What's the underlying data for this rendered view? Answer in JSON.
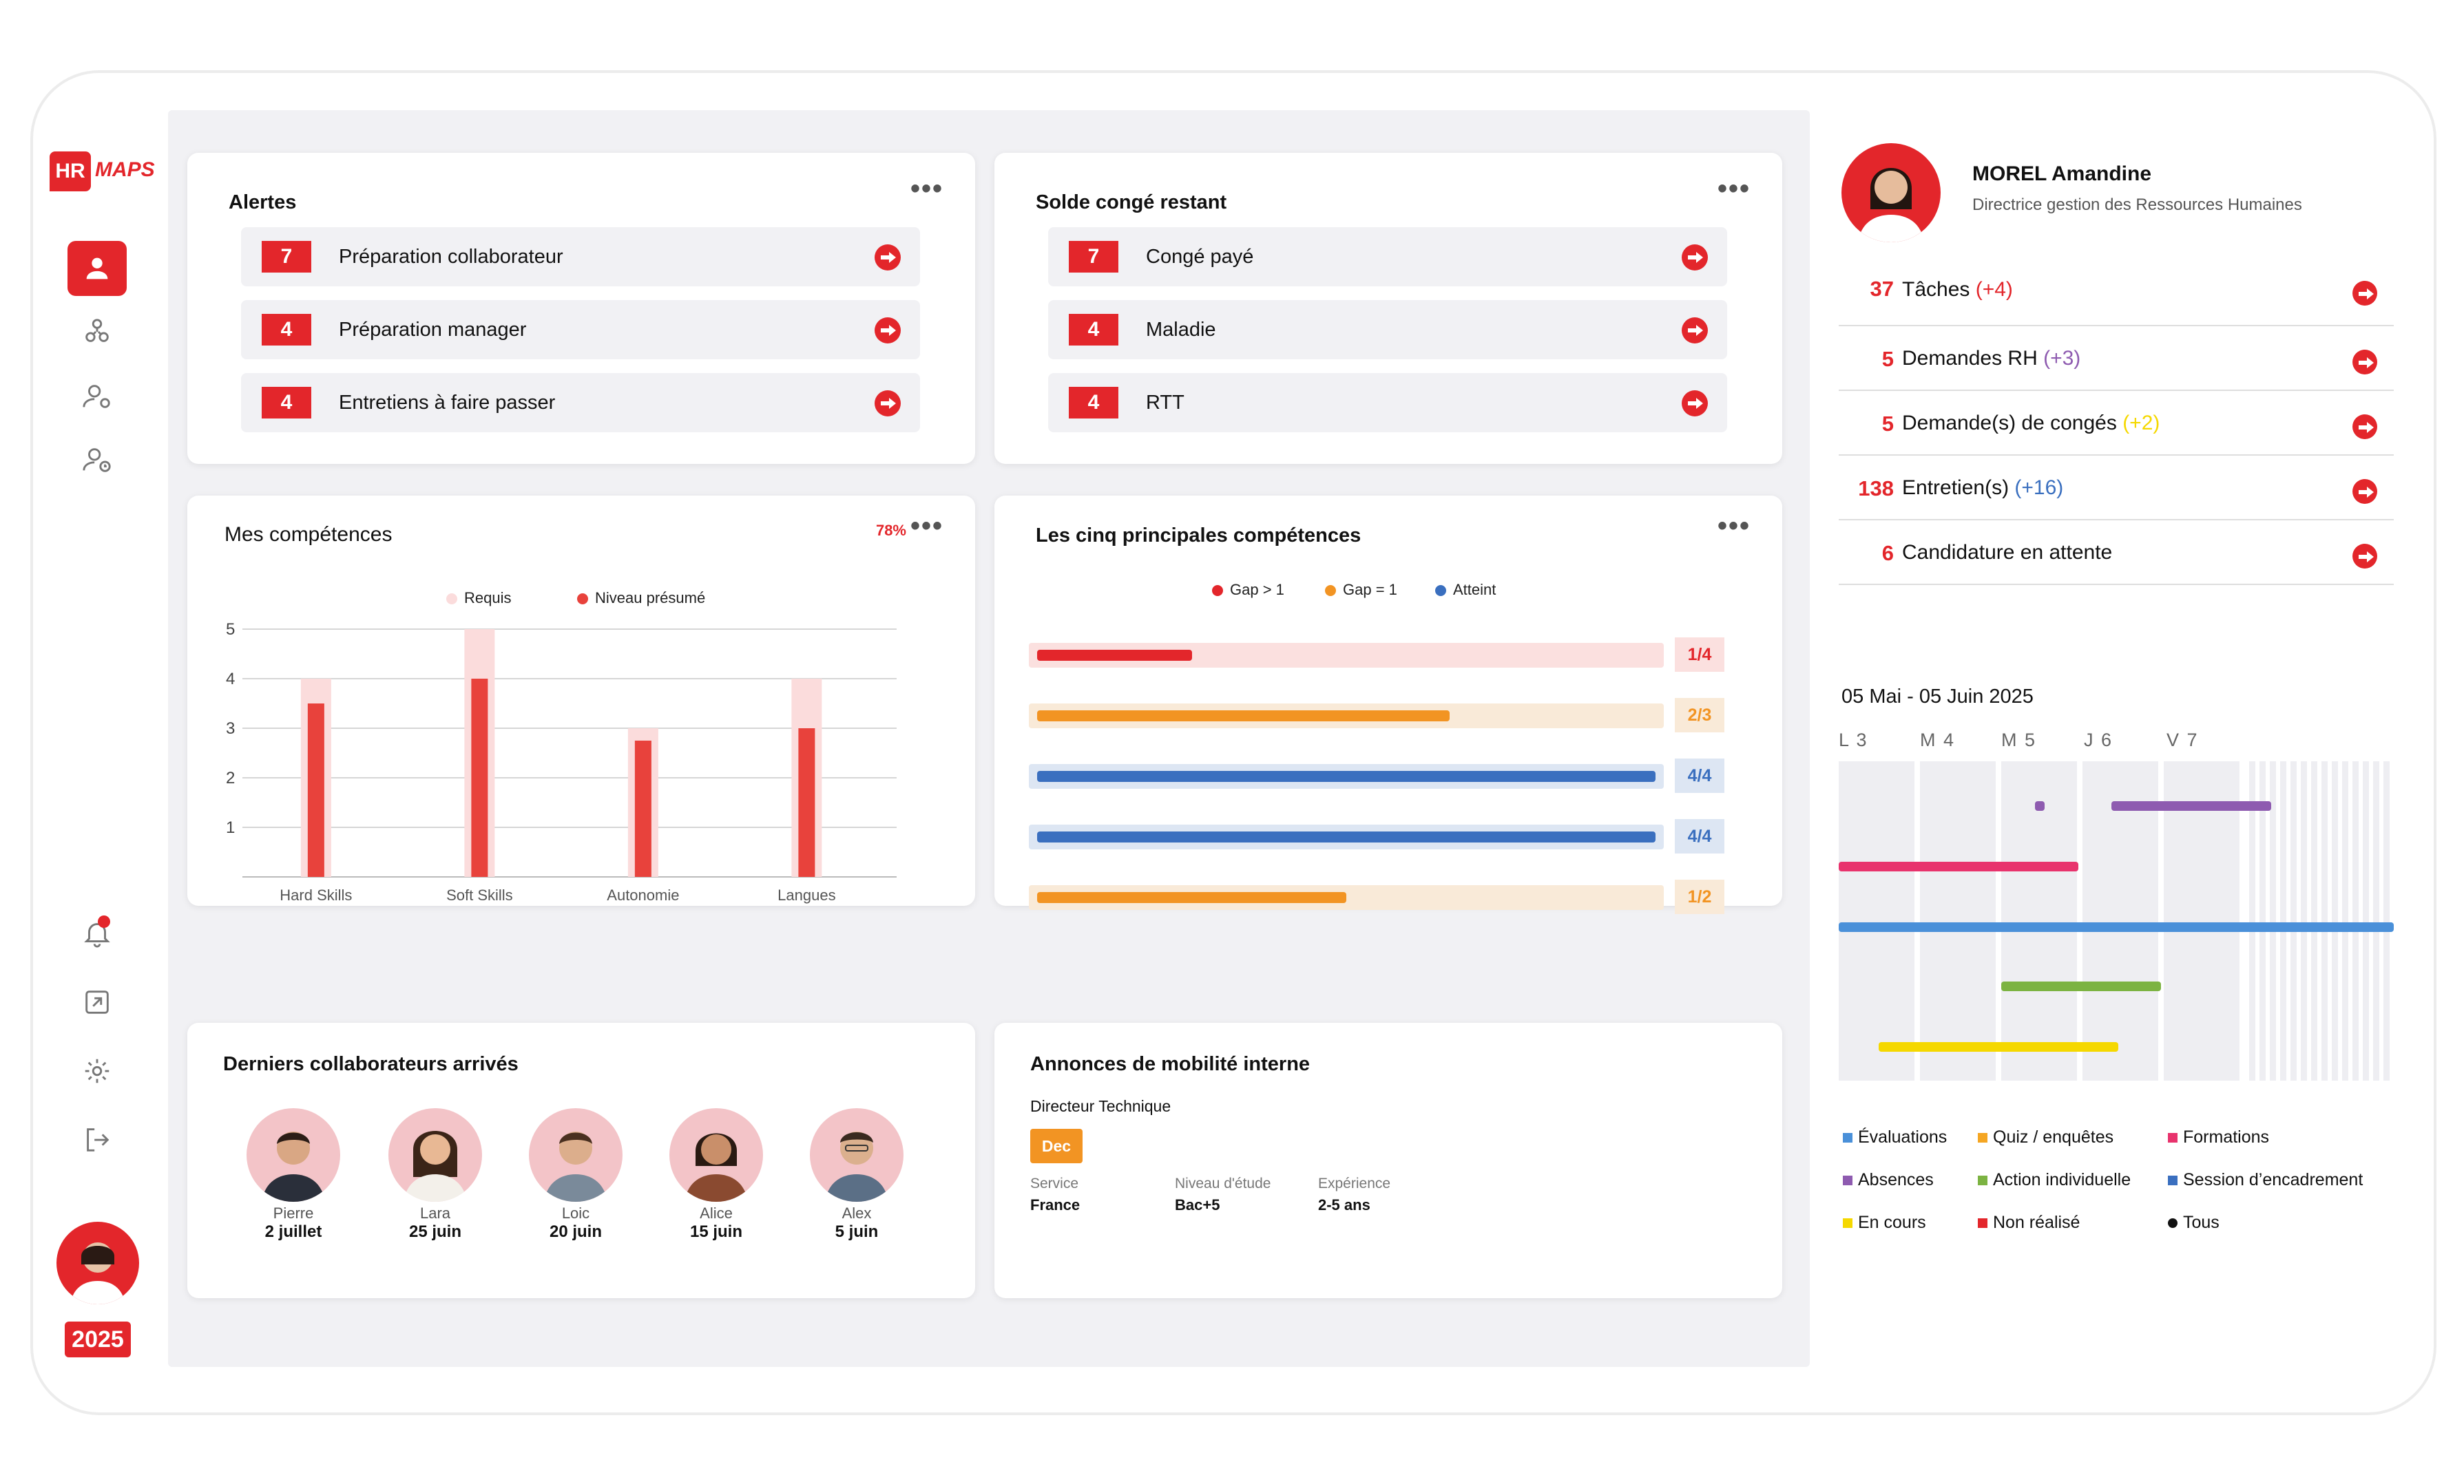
{
  "brand": {
    "logo_hr": "HR",
    "logo_maps": "MAPS",
    "year": "2025"
  },
  "sidebar": {
    "items": [
      "user-icon",
      "org-chart-icon",
      "user-settings-icon",
      "user-clock-icon",
      "bell-icon",
      "export-icon",
      "gear-icon",
      "logout-icon"
    ]
  },
  "alertes": {
    "title": "Alertes",
    "items": [
      {
        "count": "7",
        "label": "Préparation collaborateur"
      },
      {
        "count": "4",
        "label": "Préparation manager"
      },
      {
        "count": "4",
        "label": "Entretiens à faire passer"
      }
    ]
  },
  "solde": {
    "title": "Solde congé restant",
    "items": [
      {
        "count": "7",
        "label": "Congé payé"
      },
      {
        "count": "4",
        "label": "Maladie"
      },
      {
        "count": "4",
        "label": "RTT"
      }
    ]
  },
  "competences": {
    "title": "Mes compétences",
    "percent": "78%"
  },
  "top5": {
    "title": "Les cinq principales compétences",
    "legend": [
      "Gap > 1",
      "Gap = 1",
      "Atteint"
    ],
    "rows": [
      {
        "score": "1/4",
        "fill": 0.25,
        "status": "gap2"
      },
      {
        "score": "2/3",
        "fill": 0.667,
        "status": "gap1"
      },
      {
        "score": "4/4",
        "fill": 1.0,
        "status": "ok"
      },
      {
        "score": "4/4",
        "fill": 1.0,
        "status": "ok"
      },
      {
        "score": "1/2",
        "fill": 0.5,
        "status": "gap1"
      }
    ]
  },
  "chart_data": {
    "type": "bar",
    "title": "Mes compétences",
    "categories": [
      "Hard Skills",
      "Soft Skills",
      "Autonomie",
      "Langues"
    ],
    "series": [
      {
        "name": "Requis",
        "values": [
          4,
          5,
          3,
          4
        ]
      },
      {
        "name": "Niveau présumé",
        "values": [
          3.5,
          4,
          2.75,
          3
        ]
      }
    ],
    "ylim": [
      0,
      5
    ],
    "yticks": [
      "1",
      "2",
      "3",
      "4",
      "5"
    ],
    "legend": [
      "Requis",
      "Niveau présumé"
    ],
    "colors": {
      "requis": "#fbdcdc",
      "niveau": "#e8423c"
    }
  },
  "arrivals": {
    "title": "Derniers collaborateurs arrivés",
    "people": [
      {
        "name": "Pierre",
        "date": "2 juillet"
      },
      {
        "name": "Lara",
        "date": "25 juin"
      },
      {
        "name": "Loic",
        "date": "20 juin"
      },
      {
        "name": "Alice",
        "date": "15 juin"
      },
      {
        "name": "Alex",
        "date": "5 juin"
      }
    ]
  },
  "mobility": {
    "title": "Annonces de mobilité interne",
    "job": "Directeur Technique",
    "tag": "Dec",
    "fields": [
      {
        "label": "Service",
        "value": "France"
      },
      {
        "label": "Niveau d'étude",
        "value": "Bac+5"
      },
      {
        "label": "Expérience",
        "value": "2-5 ans"
      }
    ]
  },
  "profile": {
    "name": "MOREL Amandine",
    "role": "Directrice gestion des Ressources Humaines"
  },
  "tasks": [
    {
      "count": "37",
      "label": "Tâches",
      "delta": "(+4)",
      "delta_color": "#e3262b"
    },
    {
      "count": "5",
      "label": "Demandes RH",
      "delta": "(+3)",
      "delta_color": "#8e5bb0"
    },
    {
      "count": "5",
      "label": "Demande(s) de congés",
      "delta": "(+2)",
      "delta_color": "#f5d800"
    },
    {
      "count": "138",
      "label": "Entretien(s)",
      "delta": "(+16)",
      "delta_color": "#3a6fbf"
    },
    {
      "count": "6",
      "label": "Candidature en attente",
      "delta": "",
      "delta_color": "#111"
    }
  ],
  "calendar": {
    "range": "05 Mai - 05 Juin 2025",
    "days": [
      "L 3",
      "M 4",
      "M 5",
      "J 6",
      "V 7"
    ],
    "legend": [
      {
        "label": "Évaluations",
        "color": "#4a90d9"
      },
      {
        "label": "Quiz / enquêtes",
        "color": "#f5a623"
      },
      {
        "label": "Formations",
        "color": "#e8336d"
      },
      {
        "label": "Absences",
        "color": "#8e5bb0"
      },
      {
        "label": "Action individuelle",
        "color": "#7cb342"
      },
      {
        "label": "Session d’encadrement",
        "color": "#3a6fbf"
      },
      {
        "label": "En cours",
        "color": "#f5d800"
      },
      {
        "label": "Non réalisé",
        "color": "#e3262b"
      },
      {
        "label": "Tous",
        "color": "#111111"
      }
    ]
  }
}
